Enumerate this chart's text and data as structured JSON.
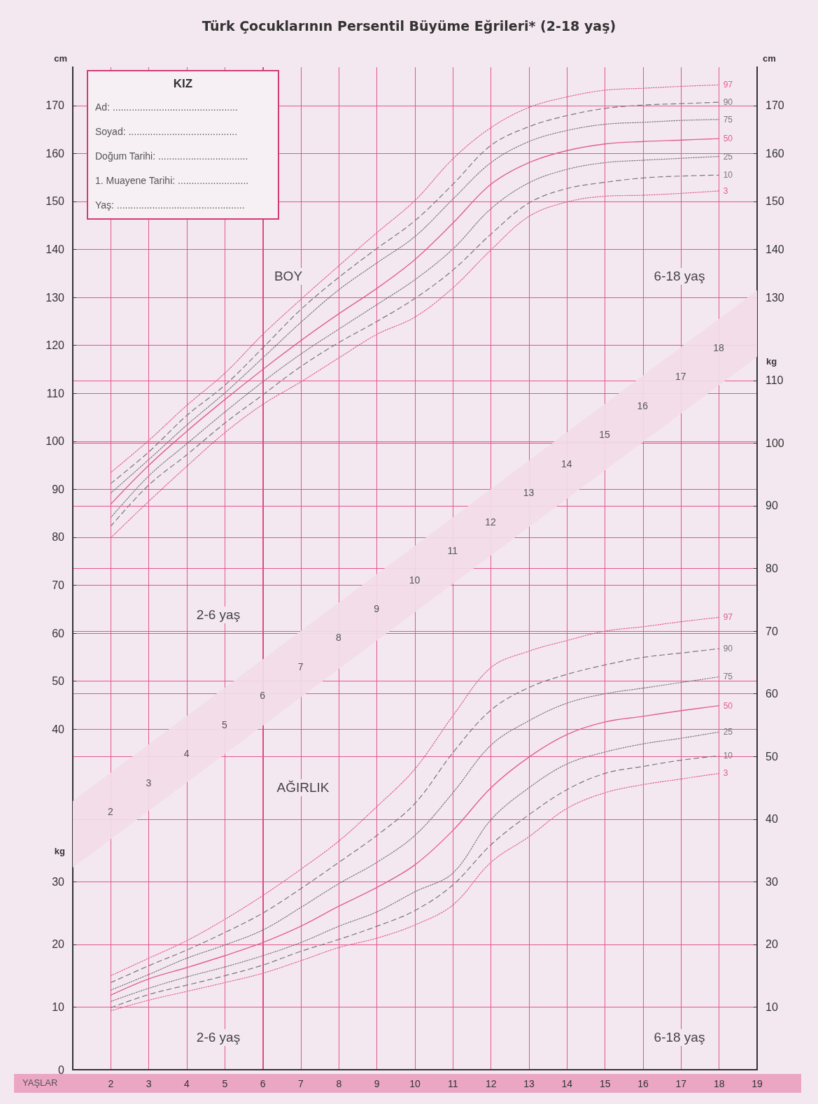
{
  "chart_data": [
    {
      "type": "line",
      "title": "Türk Çocuklarının Persentil Büyüme Eğrileri* (2-18 yaş)",
      "ylabel": "cm",
      "y2label": "cm",
      "xlim": [
        1,
        19
      ],
      "xticks": [
        2,
        3,
        4,
        5,
        6,
        7,
        8,
        9,
        10,
        11,
        12,
        13,
        14,
        15,
        16,
        17,
        18,
        19
      ],
      "tick_labels": "y",
      "ylim": [
        -31,
        178
      ],
      "yticks": [
        40,
        50,
        60,
        70,
        80,
        90,
        100,
        110,
        120,
        130,
        140,
        150,
        160,
        170
      ],
      "y2lim": [
        -31,
        178
      ],
      "y2ticks": [
        130,
        140,
        150,
        160,
        170
      ],
      "grid": true,
      "marker": "none",
      "ref_lines": [
        {
          "axis": "x",
          "value": 6,
          "color": "#d9407a"
        }
      ],
      "series": [
        {
          "name": "97",
          "color": "#e0608e",
          "line_style": "dotted",
          "x": [
            2,
            3,
            4,
            5,
            6,
            7,
            8,
            9,
            10,
            11,
            12,
            13,
            14,
            15,
            16,
            17,
            18
          ],
          "values": [
            93.5,
            100.2,
            107.5,
            114.2,
            122.3,
            129.6,
            136.6,
            143.5,
            150.2,
            158.9,
            165.4,
            169.6,
            171.8,
            173.2,
            173.6,
            174.0,
            174.3
          ]
        },
        {
          "name": "90",
          "color": "#777777",
          "line_style": "dashed",
          "x": [
            2,
            3,
            4,
            5,
            6,
            7,
            8,
            9,
            10,
            11,
            12,
            13,
            14,
            15,
            16,
            17,
            18
          ],
          "values": [
            91.2,
            97.8,
            105.4,
            111.7,
            119.5,
            127.5,
            134.2,
            140.2,
            146.0,
            153.6,
            161.7,
            165.6,
            167.9,
            169.4,
            170.1,
            170.4,
            170.7
          ]
        },
        {
          "name": "75",
          "color": "#777777",
          "line_style": "dotted",
          "x": [
            2,
            3,
            4,
            5,
            6,
            7,
            8,
            9,
            10,
            11,
            12,
            13,
            14,
            15,
            16,
            17,
            18
          ],
          "values": [
            89.2,
            96.2,
            103.4,
            110.1,
            117.4,
            124.8,
            131.6,
            137.2,
            142.7,
            150.5,
            158.1,
            162.5,
            164.8,
            166.1,
            166.5,
            166.9,
            167.1
          ]
        },
        {
          "name": "50",
          "color": "#e0608e",
          "line_style": "solid",
          "x": [
            2,
            3,
            4,
            5,
            6,
            7,
            8,
            9,
            10,
            11,
            12,
            13,
            14,
            15,
            16,
            17,
            18
          ],
          "values": [
            86.9,
            95.0,
            102.1,
            108.7,
            115.0,
            121.0,
            126.6,
            131.9,
            137.9,
            145.5,
            153.6,
            158.1,
            160.6,
            162.0,
            162.5,
            162.8,
            163.1
          ]
        },
        {
          "name": "25",
          "color": "#777777",
          "line_style": "dotted",
          "x": [
            2,
            3,
            4,
            5,
            6,
            7,
            8,
            9,
            10,
            11,
            12,
            13,
            14,
            15,
            16,
            17,
            18
          ],
          "values": [
            84.1,
            92.8,
            99.5,
            106.1,
            112.4,
            118.2,
            123.4,
            128.5,
            133.7,
            140.1,
            148.5,
            153.9,
            156.7,
            158.1,
            158.6,
            159.0,
            159.4
          ]
        },
        {
          "name": "10",
          "color": "#777777",
          "line_style": "dashed",
          "x": [
            2,
            3,
            4,
            5,
            6,
            7,
            8,
            9,
            10,
            11,
            12,
            13,
            14,
            15,
            16,
            17,
            18
          ],
          "values": [
            82.3,
            90.9,
            97.2,
            103.8,
            109.7,
            115.6,
            120.6,
            125.0,
            129.8,
            135.7,
            143.2,
            149.7,
            152.7,
            154.0,
            154.9,
            155.3,
            155.5
          ]
        },
        {
          "name": "3",
          "color": "#e0608e",
          "line_style": "dotted",
          "x": [
            2,
            3,
            4,
            5,
            6,
            7,
            8,
            9,
            10,
            11,
            12,
            13,
            14,
            15,
            16,
            17,
            18
          ],
          "values": [
            79.9,
            87.5,
            94.8,
            101.8,
            107.7,
            112.4,
            117.4,
            122.3,
            125.9,
            132.0,
            139.9,
            146.9,
            149.9,
            151.1,
            151.3,
            151.7,
            152.2
          ]
        }
      ],
      "annotations": [
        "KIZ",
        "Ad: ..............................................",
        "Soyad: ........................................",
        "Doğum Tarihi: .................................",
        "1. Muayene Tarihi: ..........................",
        "Yaş: ...............................................",
        "BOY",
        "6-18 yaş",
        "2-6 yaş"
      ]
    },
    {
      "type": "line",
      "xlabel": "YAŞLAR",
      "ylabel": "kg",
      "y2label": "kg",
      "xlim": [
        1,
        19
      ],
      "xticks": [
        2,
        3,
        4,
        5,
        6,
        7,
        8,
        9,
        10,
        11,
        12,
        13,
        14,
        15,
        16,
        17,
        18,
        19
      ],
      "ylim": [
        0,
        160
      ],
      "yticks": [
        0,
        10,
        20,
        30
      ],
      "y2lim": [
        0,
        160
      ],
      "y2ticks": [
        10,
        20,
        30,
        40,
        50,
        60,
        70,
        80,
        90,
        100,
        110
      ],
      "grid": true,
      "marker": "none",
      "series": [
        {
          "name": "97",
          "color": "#e0608e",
          "line_style": "dotted",
          "x": [
            2,
            3,
            4,
            5,
            6,
            7,
            8,
            9,
            10,
            11,
            12,
            13,
            14,
            15,
            16,
            17,
            18
          ],
          "values": [
            15.0,
            17.8,
            20.6,
            24.0,
            27.8,
            32.0,
            36.5,
            42.0,
            48.0,
            56.5,
            64.2,
            66.8,
            68.5,
            70.0,
            70.7,
            71.5,
            72.2
          ]
        },
        {
          "name": "90",
          "color": "#777777",
          "line_style": "dashed",
          "x": [
            2,
            3,
            4,
            5,
            6,
            7,
            8,
            9,
            10,
            11,
            12,
            13,
            14,
            15,
            16,
            17,
            18
          ],
          "values": [
            13.9,
            16.6,
            19.1,
            21.9,
            25.0,
            28.9,
            33.1,
            37.4,
            42.5,
            50.6,
            57.4,
            61.0,
            63.1,
            64.6,
            65.8,
            66.5,
            67.2
          ]
        },
        {
          "name": "75",
          "color": "#777777",
          "line_style": "dotted",
          "x": [
            2,
            3,
            4,
            5,
            6,
            7,
            8,
            9,
            10,
            11,
            12,
            13,
            14,
            15,
            16,
            17,
            18
          ],
          "values": [
            12.7,
            15.2,
            17.8,
            19.9,
            22.3,
            25.9,
            29.7,
            33.1,
            37.4,
            44.2,
            51.8,
            55.7,
            58.5,
            60.0,
            60.9,
            61.8,
            62.7
          ]
        },
        {
          "name": "50",
          "color": "#e0608e",
          "line_style": "solid",
          "x": [
            2,
            3,
            4,
            5,
            6,
            7,
            8,
            9,
            10,
            11,
            12,
            13,
            14,
            15,
            16,
            17,
            18
          ],
          "values": [
            11.9,
            14.5,
            16.3,
            18.2,
            20.3,
            22.9,
            26.1,
            29.1,
            32.7,
            38.2,
            45.0,
            49.9,
            53.5,
            55.5,
            56.4,
            57.3,
            58.1
          ]
        },
        {
          "name": "25",
          "color": "#777777",
          "line_style": "dotted",
          "x": [
            2,
            3,
            4,
            5,
            6,
            7,
            8,
            9,
            10,
            11,
            12,
            13,
            14,
            15,
            16,
            17,
            18
          ],
          "values": [
            10.9,
            13.0,
            14.8,
            16.4,
            18.2,
            20.3,
            22.9,
            25.2,
            28.4,
            31.4,
            39.9,
            45.0,
            48.8,
            50.7,
            52.0,
            52.9,
            53.9
          ]
        },
        {
          "name": "10",
          "color": "#777777",
          "line_style": "dashed",
          "x": [
            2,
            3,
            4,
            5,
            6,
            7,
            8,
            9,
            10,
            11,
            12,
            13,
            14,
            15,
            16,
            17,
            18
          ],
          "values": [
            9.9,
            12.0,
            13.5,
            15.0,
            16.7,
            18.9,
            20.8,
            22.9,
            25.4,
            29.5,
            35.9,
            40.7,
            44.7,
            47.3,
            48.4,
            49.4,
            50.1
          ]
        },
        {
          "name": "3",
          "color": "#e0608e",
          "line_style": "dotted",
          "x": [
            2,
            3,
            4,
            5,
            6,
            7,
            8,
            9,
            10,
            11,
            12,
            13,
            14,
            15,
            16,
            17,
            18
          ],
          "values": [
            9.4,
            11.1,
            12.5,
            13.9,
            15.4,
            17.4,
            19.5,
            21.0,
            23.1,
            26.3,
            33.1,
            37.2,
            41.7,
            44.2,
            45.5,
            46.4,
            47.3
          ]
        }
      ],
      "annotations": [
        "AĞIRLIK",
        "2-6 yaş",
        "6-18 yaş",
        "2",
        "3",
        "4",
        "5",
        "6",
        "7",
        "8",
        "9",
        "10",
        "11",
        "12",
        "13",
        "14",
        "15",
        "16",
        "17",
        "18"
      ]
    }
  ]
}
